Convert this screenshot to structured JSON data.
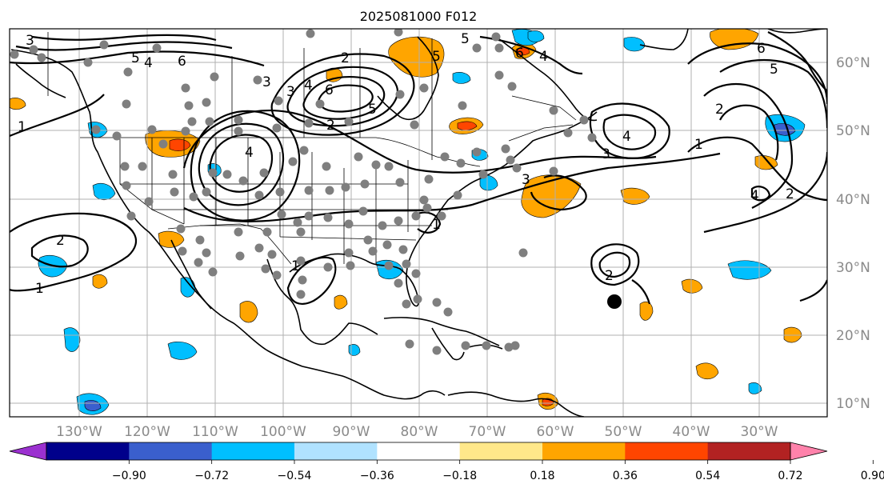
{
  "title": "2025081000 F012",
  "lat_labels": [
    "60°N",
    "50°N",
    "40°N",
    "30°N",
    "20°N",
    "10°N"
  ],
  "lon_labels": [
    "130°W",
    "120°W",
    "110°W",
    "100°W",
    "90°W",
    "80°W",
    "70°W",
    "60°W",
    "50°W",
    "40°W",
    "30°W"
  ],
  "colorbar": {
    "colors": [
      "#9b30d0",
      "#00008b",
      "#3a5fcd",
      "#00bfff",
      "#b0e2ff",
      "#ffffff",
      "#ffe88a",
      "#ffa500",
      "#ff4500",
      "#b22222",
      "#ff82ab"
    ],
    "tick_labels": [
      "−0.90",
      "−0.72",
      "−0.54",
      "−0.36",
      "−0.18",
      "0.18",
      "0.36",
      "0.54",
      "0.72",
      "0.90"
    ]
  },
  "contour_labels": [
    "3",
    "4",
    "5",
    "6",
    "2",
    "6",
    "5",
    "4",
    "3",
    "5",
    "4",
    "6",
    "5",
    "1",
    "4",
    "3",
    "3",
    "4",
    "3",
    "1",
    "2",
    "1",
    "1",
    "2",
    "6",
    "5",
    "2",
    "1",
    "2",
    "4",
    "2"
  ],
  "marker": "black-dot"
}
